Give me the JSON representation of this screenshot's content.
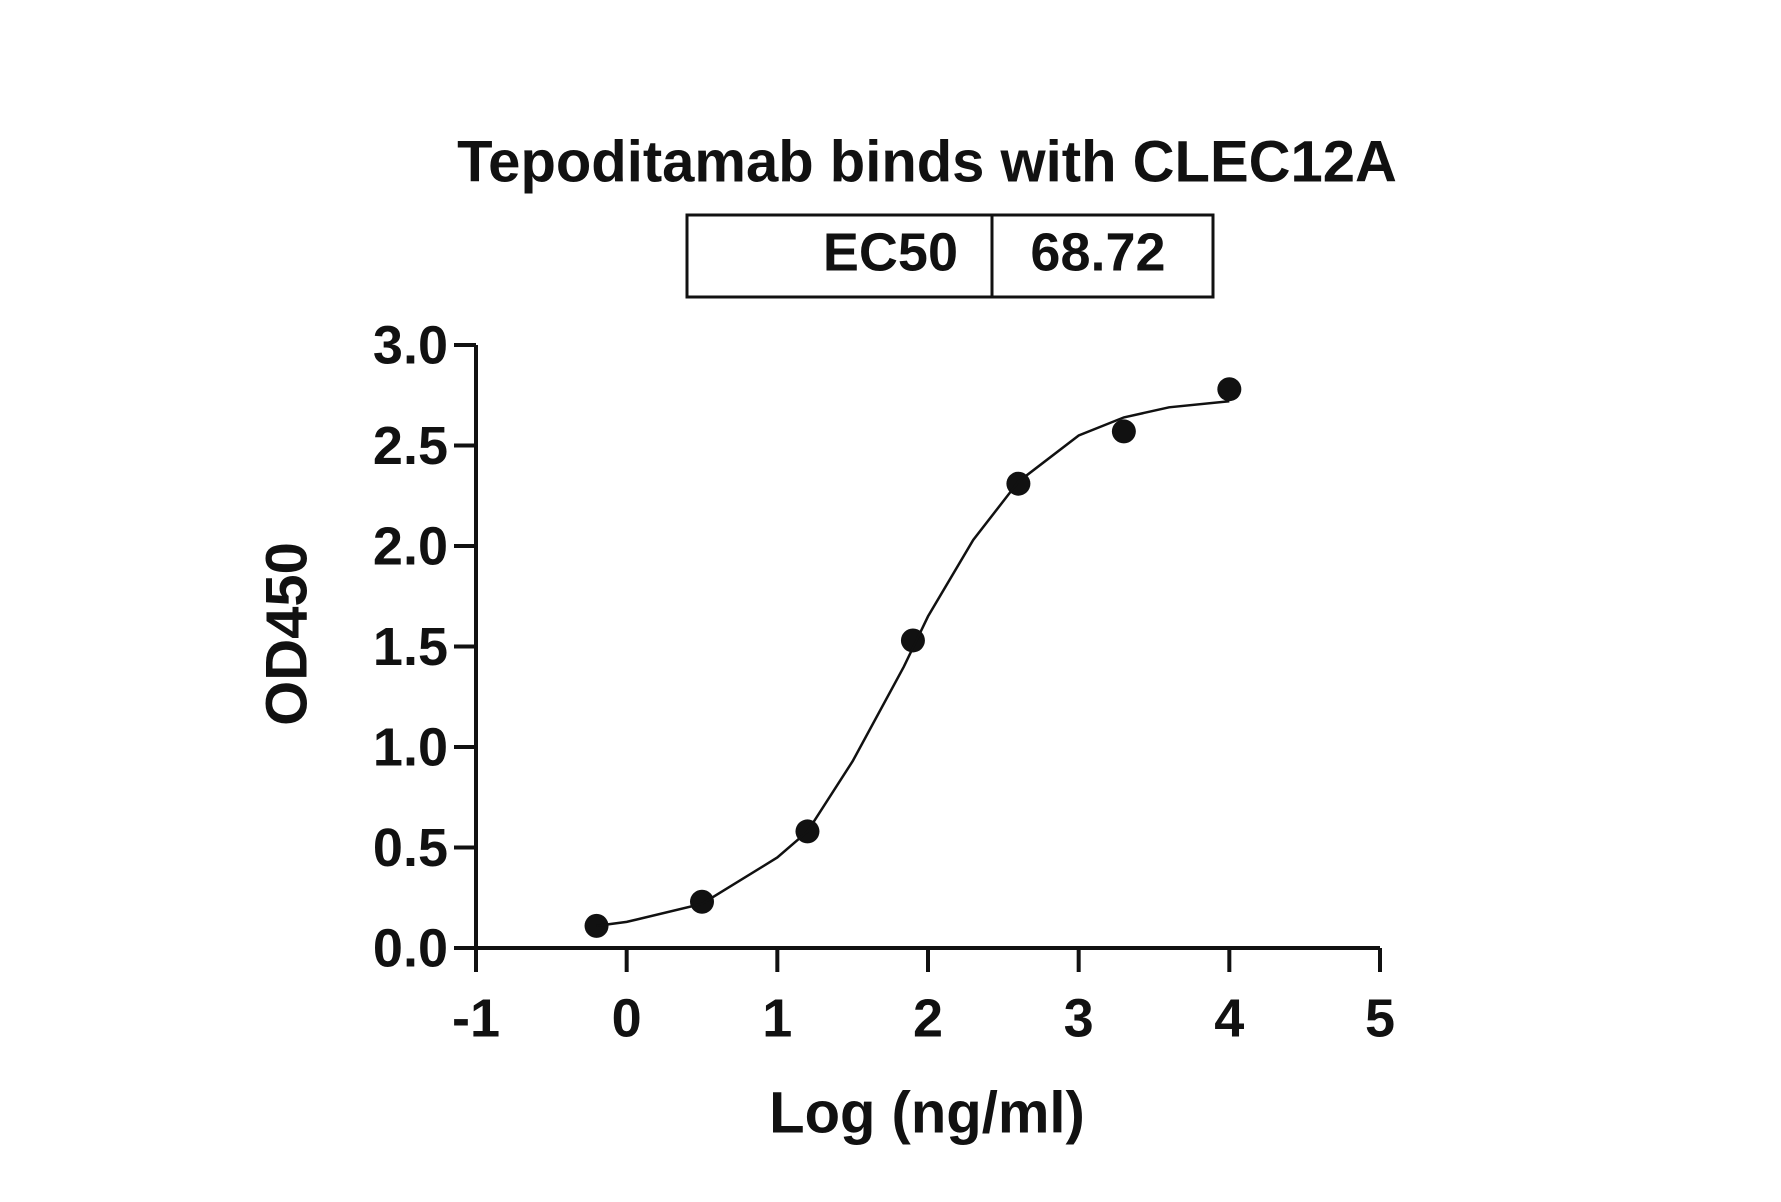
{
  "chart_data": {
    "type": "scatter",
    "title": "Tepoditamab binds with CLEC12A",
    "ec50_table": {
      "label": "EC50",
      "value": 68.72
    },
    "x_label": "Log (ng/ml)",
    "y_label": "OD450",
    "xlim": [
      -1,
      5
    ],
    "xticks": [
      -1,
      0,
      1,
      2,
      3,
      4,
      5
    ],
    "ylim": [
      0,
      3
    ],
    "yticks": [
      {
        "value": 0,
        "label": "0.0"
      },
      {
        "value": 0.5,
        "label": "0.5"
      },
      {
        "value": 1,
        "label": "1.0"
      },
      {
        "value": 1.5,
        "label": "1.5"
      },
      {
        "value": 2,
        "label": "2.0"
      },
      {
        "value": 2.5,
        "label": "2.5"
      },
      {
        "value": 3,
        "label": "3.0"
      }
    ],
    "series": [
      {
        "type": "scatter",
        "color": "#111111",
        "x": [
          -0.2,
          0.5,
          1.2,
          1.9,
          2.6,
          3.3,
          4.0
        ],
        "values": [
          0.11,
          0.23,
          0.58,
          1.53,
          2.31,
          2.57,
          2.78
        ]
      },
      {
        "type": "line",
        "color": "#111111",
        "x": [
          -0.2,
          0.0,
          0.5,
          1.0,
          1.2,
          1.5,
          1.84,
          2.0,
          2.3,
          2.6,
          3.0,
          3.3,
          3.6,
          4.0
        ],
        "values": [
          0.11,
          0.13,
          0.22,
          0.45,
          0.58,
          0.93,
          1.4,
          1.65,
          2.03,
          2.32,
          2.55,
          2.64,
          2.69,
          2.72
        ]
      }
    ]
  }
}
